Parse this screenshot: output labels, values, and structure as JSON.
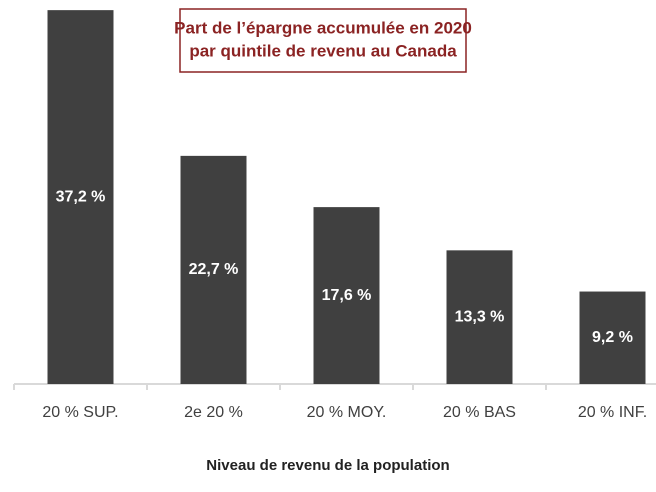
{
  "chart_data": {
    "type": "bar",
    "title": [
      "Part de l’épargne accumulée en 2020",
      "par quintile de revenu au Canada"
    ],
    "x_label": "Niveau de revenu de la population",
    "categories": [
      "20 % SUP.",
      "2e 20 %",
      "20 % MOY.",
      "20 % BAS",
      "20 % INF."
    ],
    "values": [
      37.2,
      22.7,
      17.6,
      13.3,
      9.2
    ],
    "value_labels": [
      "37,2 %",
      "22,7 %",
      "17,6 %",
      "13,3 %",
      "9,2 %"
    ],
    "color": "#404040",
    "ylim": [
      0,
      40
    ]
  }
}
